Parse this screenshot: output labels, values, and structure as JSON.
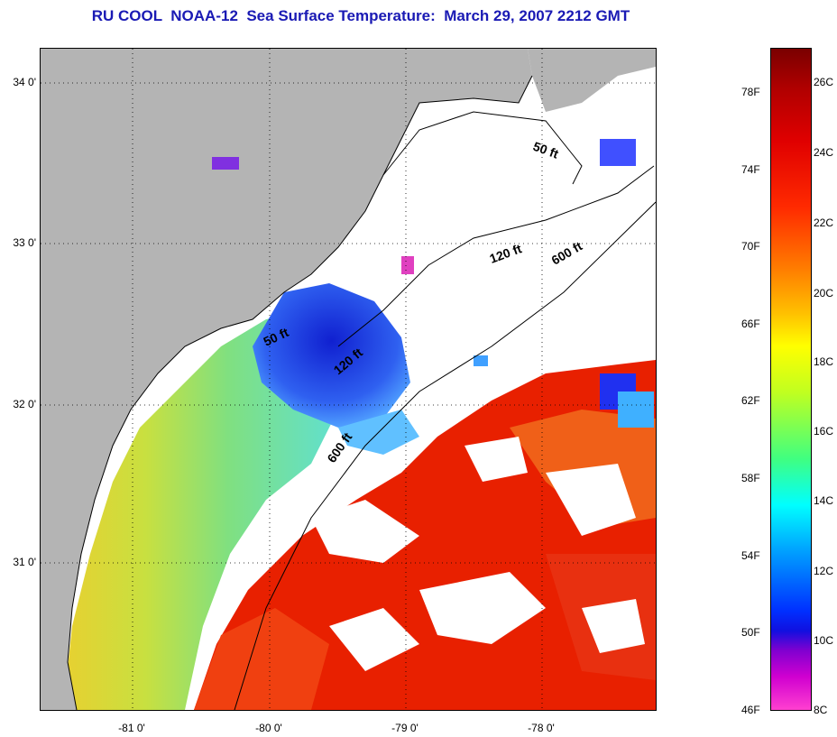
{
  "title": "RU COOL  NOAA-12  Sea Surface Temperature:  March 29, 2007 2212 GMT",
  "map": {
    "lat_labels": [
      "34 0'",
      "33 0'",
      "32 0'",
      "31 0'"
    ],
    "lon_labels": [
      "-81 0'",
      "-80 0'",
      "-79 0'",
      "-78 0'"
    ],
    "isobath_labels": [
      "50 ft",
      "120 ft",
      "600 ft",
      "50 ft",
      "120 ft",
      "600 ft"
    ],
    "colors": {
      "land": "#b4b4b4",
      "cloud_mask": "#ffffff",
      "nearshore_cool": "#c8e040",
      "cold_pocket": "#2040e0",
      "warm_offshore": "#e81c00"
    }
  },
  "colorbar": {
    "fahrenheit_labels": [
      "78F",
      "74F",
      "70F",
      "66F",
      "62F",
      "58F",
      "54F",
      "50F",
      "46F"
    ],
    "celsius_labels": [
      "26C",
      "24C",
      "22C",
      "20C",
      "18C",
      "16C",
      "14C",
      "12C",
      "10C",
      "8C"
    ],
    "range_f": [
      46,
      80
    ],
    "range_c": [
      8,
      27
    ]
  }
}
